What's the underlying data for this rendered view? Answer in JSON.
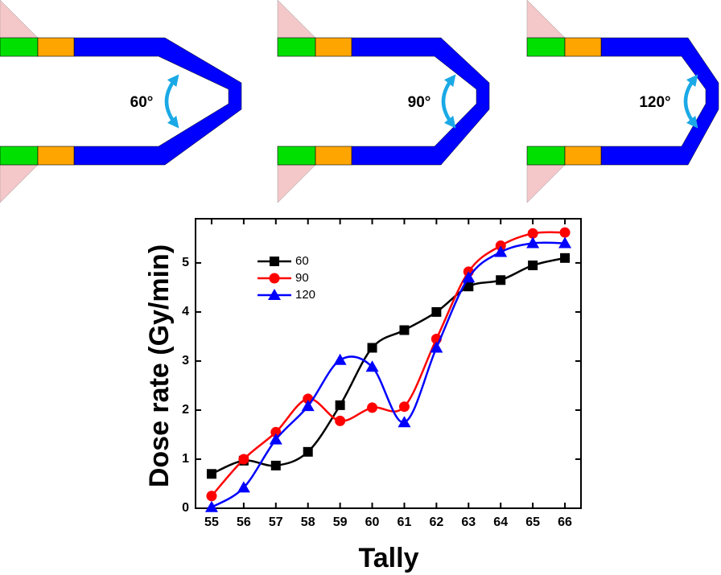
{
  "diagrams": [
    {
      "label": "60°"
    },
    {
      "label": "90°"
    },
    {
      "label": "120°"
    }
  ],
  "chart_data": {
    "type": "line",
    "title": null,
    "x_label": "Tally",
    "y_label": "Dose rate (Gy/min)",
    "x": [
      55,
      56,
      57,
      58,
      59,
      60,
      61,
      62,
      63,
      64,
      65,
      66
    ],
    "xlim": [
      54.5,
      66.5
    ],
    "xticks": [
      55,
      56,
      57,
      58,
      59,
      60,
      61,
      62,
      63,
      64,
      65,
      66
    ],
    "ylim": [
      0,
      5.9
    ],
    "yticks": [
      0,
      1,
      2,
      3,
      4,
      5
    ],
    "legend": "upper left",
    "series": [
      {
        "name": "60",
        "color": "#000000",
        "marker": "square",
        "values": [
          0.7,
          0.97,
          0.87,
          1.15,
          2.1,
          3.27,
          3.63,
          4.0,
          4.52,
          4.65,
          4.95,
          5.1
        ]
      },
      {
        "name": "90",
        "color": "#ff0000",
        "marker": "circle",
        "values": [
          0.25,
          1.0,
          1.55,
          2.23,
          1.78,
          2.05,
          2.07,
          3.45,
          4.82,
          5.35,
          5.6,
          5.62
        ]
      },
      {
        "name": "120",
        "color": "#0000ff",
        "marker": "triangle",
        "values": [
          0.02,
          0.42,
          1.4,
          2.08,
          3.02,
          2.88,
          1.75,
          3.27,
          4.7,
          5.22,
          5.4,
          5.4
        ]
      }
    ]
  }
}
